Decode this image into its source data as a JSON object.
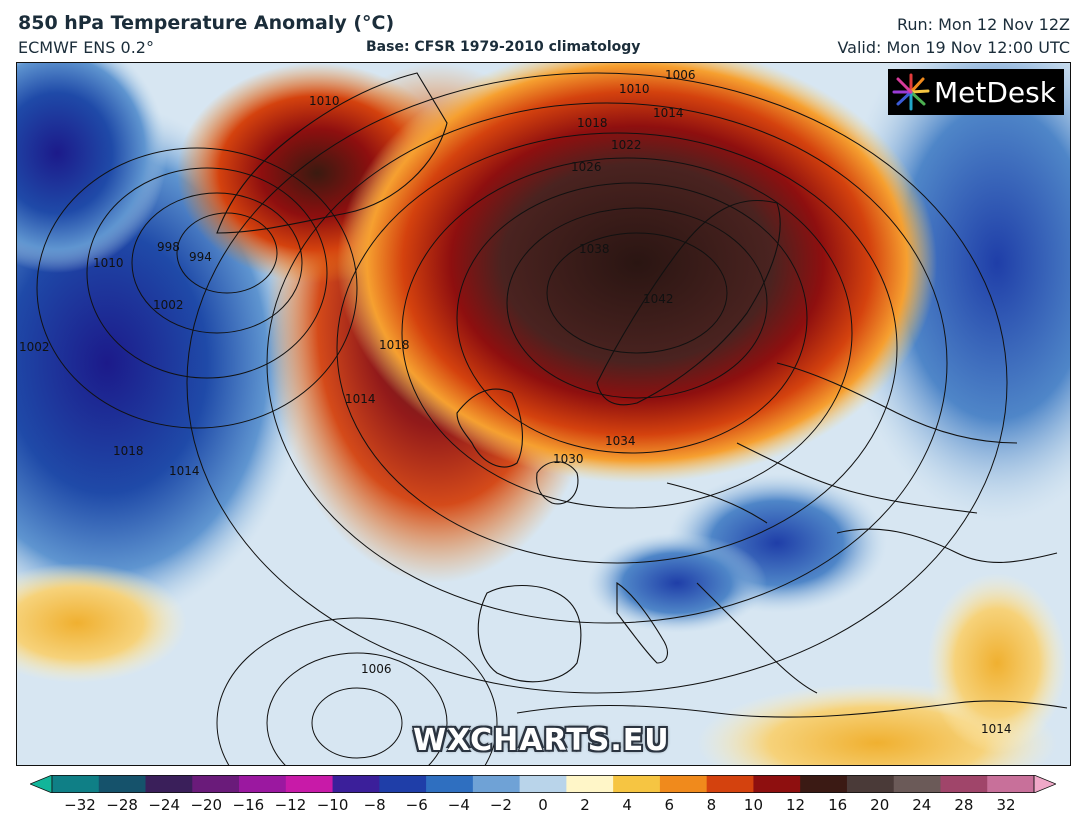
{
  "header": {
    "title": "850 hPa Temperature Anomaly (°C)",
    "model": "ECMWF ENS 0.2°",
    "base": "Base: CFSR 1979-2010 climatology",
    "run": "Run: Mon 12 Nov 12Z",
    "valid": "Valid: Mon 19 Nov 12:00 UTC"
  },
  "logo": {
    "text": "MetDesk",
    "icon": "metdesk-starburst-icon"
  },
  "watermark": "WXCHARTS.EU",
  "isobar_labels": [
    "1006",
    "1010",
    "1014",
    "1018",
    "1022",
    "1026",
    "1038",
    "1042",
    "1034",
    "1030",
    "1018",
    "1014",
    "1010",
    "998",
    "994",
    "1002",
    "1010",
    "1018",
    "1014",
    "1006",
    "1014",
    "1002"
  ],
  "colorbar": {
    "ticks": [
      "−32",
      "−28",
      "−24",
      "−20",
      "−16",
      "−12",
      "−10",
      "−8",
      "−6",
      "−4",
      "−2",
      "0",
      "2",
      "4",
      "6",
      "8",
      "10",
      "12",
      "16",
      "20",
      "24",
      "28",
      "32"
    ],
    "colors": [
      "#12b59a",
      "#0f7f86",
      "#15526b",
      "#3a1f5a",
      "#6a1b7a",
      "#9b18a0",
      "#c81aa8",
      "#3b1f9a",
      "#1f3ea8",
      "#2f6fc0",
      "#6fa2d6",
      "#b9d4ea",
      "#fff6c8",
      "#f6c542",
      "#f08a1c",
      "#d4420e",
      "#8e0f0f",
      "#3b1a14",
      "#4a3a38",
      "#6b5a58",
      "#a0456a",
      "#c8709a",
      "#f0a8c8"
    ]
  }
}
